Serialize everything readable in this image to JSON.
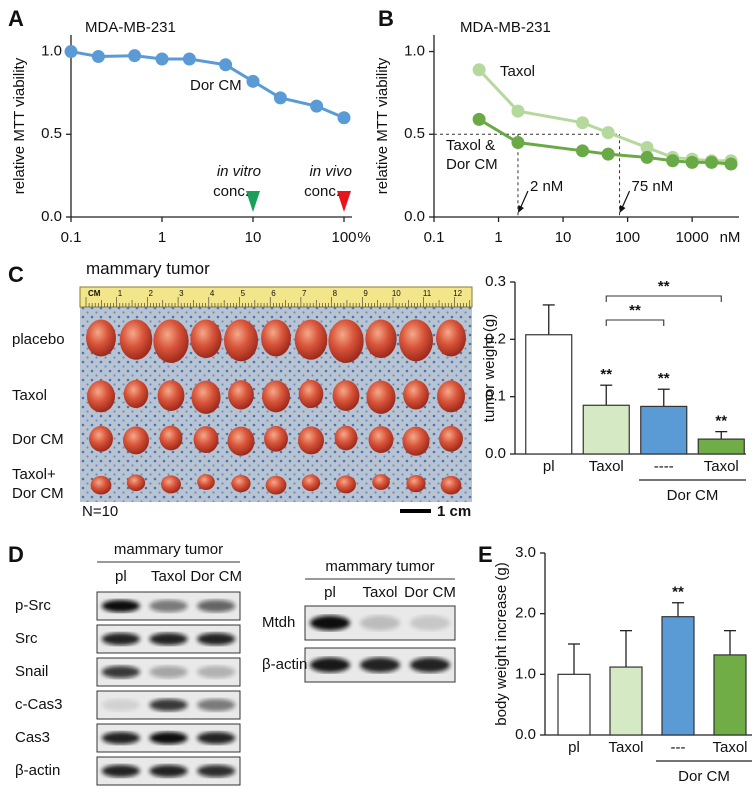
{
  "panel_labels": [
    "A",
    "B",
    "C",
    "D",
    "E"
  ],
  "chart_data": [
    {
      "type": "line",
      "title": "MDA-MB-231",
      "ylabel": "relative MTT viability",
      "xscale": "log",
      "xlim": [
        0.1,
        100
      ],
      "ylim": [
        0,
        1.1
      ],
      "xticks": [
        0.1,
        1,
        10,
        100
      ],
      "x_unit": "%",
      "yticks": [
        {
          "value": 0,
          "label": "0.0"
        },
        0.5,
        {
          "value": 1,
          "label": "1.0"
        }
      ],
      "x": [
        0.1,
        0.2,
        0.5,
        1,
        2,
        5,
        10,
        20,
        50,
        100
      ],
      "series": [
        {
          "name": "Dor CM",
          "color": "#5b9bd5",
          "values": [
            1.0,
            0.97,
            0.975,
            0.955,
            0.955,
            0.92,
            0.82,
            0.72,
            0.67,
            0.6
          ]
        }
      ],
      "annotations": [
        {
          "text": "in vitro",
          "sub": "conc.",
          "x": 10,
          "color": "#1aa05a"
        },
        {
          "text": "in vivo",
          "sub": "conc.",
          "x": 100,
          "color": "#e8141c"
        }
      ]
    },
    {
      "type": "line",
      "title": "MDA-MB-231",
      "ylabel": "relative MTT viability",
      "xscale": "log",
      "xlim": [
        0.1,
        4000
      ],
      "ylim": [
        0,
        1.1
      ],
      "xticks": [
        0.1,
        1,
        10,
        100,
        1000
      ],
      "x_unit": "nM",
      "yticks": [
        {
          "value": 0,
          "label": "0.0"
        },
        0.5,
        {
          "value": 1,
          "label": "1.0"
        }
      ],
      "x": [
        0.5,
        2,
        20,
        50,
        200,
        500,
        1000,
        2000,
        4000
      ],
      "series": [
        {
          "name": "Taxol",
          "color": "#b5d99c",
          "values": [
            0.89,
            0.64,
            0.57,
            0.51,
            0.42,
            0.36,
            0.35,
            0.34,
            0.34
          ]
        },
        {
          "name": "Taxol & Dor CM",
          "color": "#6aaa46",
          "values": [
            0.59,
            0.45,
            0.4,
            0.38,
            0.36,
            0.34,
            0.33,
            0.33,
            0.32
          ]
        }
      ],
      "ref_y": 0.5,
      "ref_x": [
        {
          "x": 2,
          "label": "2 nM"
        },
        {
          "x": 75,
          "label": "75 nM"
        }
      ]
    },
    {
      "type": "bar",
      "ylabel": "tumor weight (g)",
      "categories": [
        "pl",
        "Taxol",
        "----",
        "Taxol"
      ],
      "values": [
        0.208,
        0.085,
        0.083,
        0.026
      ],
      "errors": [
        0.052,
        0.035,
        0.03,
        0.013
      ],
      "colors": [
        "#ffffff",
        "#d5e9c5",
        "#5b9bd5",
        "#70ad47"
      ],
      "ylim": [
        0,
        0.3
      ],
      "yticks": [
        {
          "value": 0,
          "label": "0.0"
        },
        0.1,
        0.2,
        0.3
      ],
      "group": {
        "label": "Dor CM",
        "from": 2,
        "to": 3
      },
      "significance": [
        null,
        "**",
        "**",
        "**"
      ],
      "brackets": [
        {
          "from": 1,
          "to": 2,
          "label": "**"
        },
        {
          "from": 1,
          "to": 3,
          "label": "**"
        }
      ]
    },
    {
      "type": "bar",
      "ylabel": "body weight increase (g)",
      "categories": [
        "pl",
        "Taxol",
        "---",
        "Taxol"
      ],
      "values": [
        1.0,
        1.12,
        1.95,
        1.32
      ],
      "errors": [
        0.5,
        0.6,
        0.23,
        0.4
      ],
      "colors": [
        "#ffffff",
        "#d5e9c5",
        "#5b9bd5",
        "#70ad47"
      ],
      "ylim": [
        0,
        3
      ],
      "yticks": [
        {
          "value": 0,
          "label": "0.0"
        },
        {
          "value": 1,
          "label": "1.0"
        },
        {
          "value": 2,
          "label": "2.0"
        },
        {
          "value": 3,
          "label": "3.0"
        }
      ],
      "group": {
        "label": "Dor CM",
        "from": 2,
        "to": 3
      },
      "significance": [
        null,
        null,
        "**",
        null
      ]
    }
  ],
  "photo": {
    "title": "mammary tumor",
    "ruler_unit": "CM",
    "ruler_labels": [
      "1",
      "2",
      "3",
      "4",
      "5",
      "6",
      "7",
      "8",
      "9",
      "10",
      "11",
      "12"
    ],
    "rows": [
      "placebo",
      "Taxol",
      "Dor CM",
      "Taxol+ Dor CM"
    ],
    "n_label": "N=10",
    "scale_label": "1 cm"
  },
  "blots": [
    {
      "title": "mammary tumor",
      "lanes": [
        "pl",
        "Taxol",
        "Dor CM"
      ],
      "rows": [
        "p-Src",
        "Src",
        "Snail",
        "c-Cas3",
        "Cas3",
        "β-actin"
      ]
    },
    {
      "title": "mammary tumor",
      "lanes": [
        "pl",
        "Taxol",
        "Dor CM"
      ],
      "rows": [
        "Mtdh",
        "β-actin"
      ]
    }
  ]
}
